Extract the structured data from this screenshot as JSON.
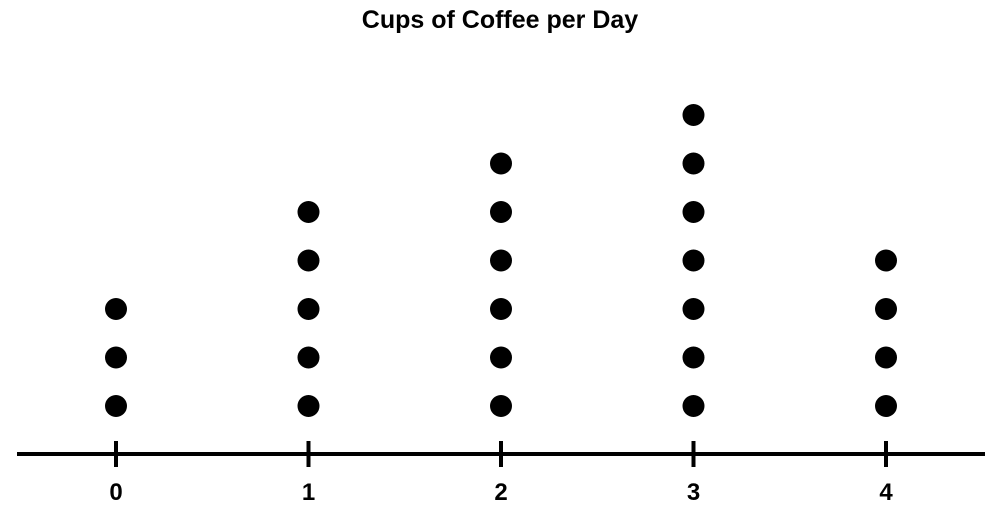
{
  "chart_data": {
    "type": "dot-plot",
    "title": "Cups of Coffee per Day",
    "xlabel": "",
    "ylabel": "",
    "categories": [
      "0",
      "1",
      "2",
      "3",
      "4"
    ],
    "x": [
      0,
      1,
      2,
      3,
      4
    ],
    "values": [
      3,
      5,
      6,
      7,
      4
    ],
    "xlim": [
      -0.5,
      4.5
    ],
    "grid": false,
    "legend": "none",
    "dot_color": "#000000",
    "axis_color": "#000000"
  }
}
